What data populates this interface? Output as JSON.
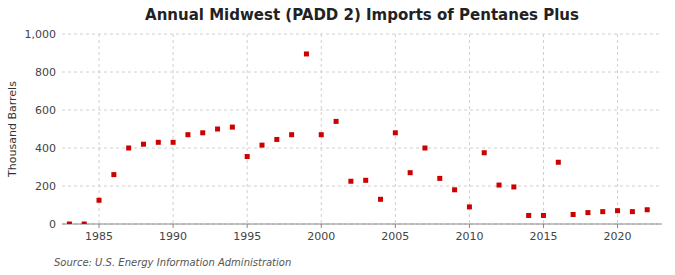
{
  "chart_data": {
    "type": "scatter",
    "title": "Annual Midwest (PADD 2) Imports of Pentanes Plus",
    "ylabel": "Thousand Barrels",
    "source": "Source: U.S. Energy Information Administration",
    "x": [
      1983,
      1984,
      1985,
      1986,
      1987,
      1988,
      1989,
      1990,
      1991,
      1992,
      1993,
      1994,
      1995,
      1996,
      1997,
      1998,
      1999,
      2000,
      2001,
      2002,
      2003,
      2004,
      2005,
      2006,
      2007,
      2008,
      2009,
      2010,
      2011,
      2012,
      2013,
      2014,
      2015,
      2016,
      2017,
      2018,
      2019,
      2020,
      2021,
      2022
    ],
    "values": [
      0,
      0,
      125,
      260,
      400,
      420,
      430,
      430,
      470,
      480,
      500,
      510,
      355,
      415,
      445,
      470,
      895,
      470,
      540,
      225,
      230,
      130,
      480,
      270,
      400,
      240,
      180,
      90,
      375,
      205,
      195,
      45,
      45,
      325,
      50,
      60,
      65,
      70,
      65,
      75
    ],
    "color": "#cc0000",
    "marker": "square",
    "xlim": [
      1982.5,
      2023
    ],
    "ylim": [
      0,
      1000
    ],
    "xticks": [
      1985,
      1990,
      1995,
      2000,
      2005,
      2010,
      2015,
      2020
    ],
    "yticks": [
      0,
      200,
      400,
      600,
      800,
      {
        "value": 1000,
        "label": "1,000"
      }
    ],
    "grid": true
  }
}
